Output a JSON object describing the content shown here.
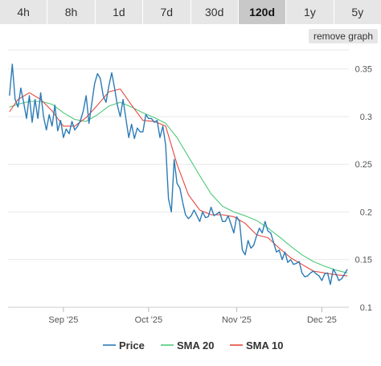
{
  "timeframes": {
    "tabs": [
      "4h",
      "8h",
      "1d",
      "7d",
      "30d",
      "120d",
      "1y",
      "5y"
    ],
    "active_index": 5
  },
  "remove_graph_label": "remove graph",
  "chart_data": {
    "type": "line",
    "title": "",
    "xlabel": "",
    "ylabel": "",
    "ylim": [
      0.1,
      0.37
    ],
    "grid": true,
    "legend_position": "bottom",
    "y_ticks": [
      {
        "value": 0.35,
        "label": "0.35"
      },
      {
        "value": 0.3,
        "label": "0.3"
      },
      {
        "value": 0.25,
        "label": "0.25"
      },
      {
        "value": 0.2,
        "label": "0.2"
      },
      {
        "value": 0.15,
        "label": "0.15"
      },
      {
        "value": 0.1,
        "label": "0.1"
      }
    ],
    "x_ticks": [
      {
        "date": "2025-09-01",
        "label": "Sep '25"
      },
      {
        "date": "2025-10-01",
        "label": "Oct '25"
      },
      {
        "date": "2025-11-01",
        "label": "Nov '25"
      },
      {
        "date": "2025-12-01",
        "label": "Dec '25"
      }
    ],
    "series": [
      {
        "name": "Price",
        "color": "#2c7bb6",
        "x": [
          "2025-08-13",
          "2025-08-14",
          "2025-08-15",
          "2025-08-16",
          "2025-08-17",
          "2025-08-18",
          "2025-08-19",
          "2025-08-20",
          "2025-08-21",
          "2025-08-22",
          "2025-08-23",
          "2025-08-24",
          "2025-08-25",
          "2025-08-26",
          "2025-08-27",
          "2025-08-28",
          "2025-08-29",
          "2025-08-30",
          "2025-08-31",
          "2025-09-01",
          "2025-09-02",
          "2025-09-03",
          "2025-09-04",
          "2025-09-05",
          "2025-09-06",
          "2025-09-07",
          "2025-09-08",
          "2025-09-09",
          "2025-09-10",
          "2025-09-11",
          "2025-09-12",
          "2025-09-13",
          "2025-09-14",
          "2025-09-15",
          "2025-09-16",
          "2025-09-17",
          "2025-09-18",
          "2025-09-19",
          "2025-09-20",
          "2025-09-21",
          "2025-09-22",
          "2025-09-23",
          "2025-09-24",
          "2025-09-25",
          "2025-09-26",
          "2025-09-27",
          "2025-09-28",
          "2025-09-29",
          "2025-09-30",
          "2025-10-01",
          "2025-10-02",
          "2025-10-03",
          "2025-10-04",
          "2025-10-05",
          "2025-10-06",
          "2025-10-07",
          "2025-10-08",
          "2025-10-09",
          "2025-10-10",
          "2025-10-11",
          "2025-10-12",
          "2025-10-13",
          "2025-10-14",
          "2025-10-15",
          "2025-10-16",
          "2025-10-17",
          "2025-10-18",
          "2025-10-19",
          "2025-10-20",
          "2025-10-21",
          "2025-10-22",
          "2025-10-23",
          "2025-10-24",
          "2025-10-25",
          "2025-10-26",
          "2025-10-27",
          "2025-10-28",
          "2025-10-29",
          "2025-10-30",
          "2025-10-31",
          "2025-11-01",
          "2025-11-02",
          "2025-11-03",
          "2025-11-04",
          "2025-11-05",
          "2025-11-06",
          "2025-11-07",
          "2025-11-08",
          "2025-11-09",
          "2025-11-10",
          "2025-11-11",
          "2025-11-12",
          "2025-11-13",
          "2025-11-14",
          "2025-11-15",
          "2025-11-16",
          "2025-11-17",
          "2025-11-18",
          "2025-11-19",
          "2025-11-20",
          "2025-11-21",
          "2025-11-22",
          "2025-11-23",
          "2025-11-24",
          "2025-11-25",
          "2025-11-26",
          "2025-11-27",
          "2025-11-28",
          "2025-11-29",
          "2025-11-30",
          "2025-12-01",
          "2025-12-02",
          "2025-12-03",
          "2025-12-04",
          "2025-12-05",
          "2025-12-06",
          "2025-12-07",
          "2025-12-08",
          "2025-12-09",
          "2025-12-10"
        ],
        "values": [
          0.322,
          0.355,
          0.318,
          0.31,
          0.33,
          0.315,
          0.298,
          0.322,
          0.294,
          0.318,
          0.298,
          0.325,
          0.3,
          0.286,
          0.302,
          0.29,
          0.312,
          0.285,
          0.296,
          0.278,
          0.287,
          0.282,
          0.295,
          0.286,
          0.29,
          0.296,
          0.306,
          0.322,
          0.293,
          0.314,
          0.335,
          0.345,
          0.34,
          0.322,
          0.315,
          0.332,
          0.346,
          0.33,
          0.312,
          0.3,
          0.318,
          0.298,
          0.278,
          0.292,
          0.277,
          0.288,
          0.284,
          0.284,
          0.302,
          0.298,
          0.298,
          0.294,
          0.296,
          0.278,
          0.29,
          0.27,
          0.214,
          0.2,
          0.255,
          0.23,
          0.225,
          0.21,
          0.197,
          0.193,
          0.196,
          0.202,
          0.196,
          0.19,
          0.2,
          0.194,
          0.195,
          0.205,
          0.196,
          0.198,
          0.2,
          0.19,
          0.19,
          0.196,
          0.187,
          0.178,
          0.195,
          0.19,
          0.16,
          0.155,
          0.17,
          0.162,
          0.165,
          0.175,
          0.183,
          0.178,
          0.19,
          0.18,
          0.178,
          0.168,
          0.158,
          0.16,
          0.15,
          0.158,
          0.147,
          0.15,
          0.145,
          0.146,
          0.148,
          0.136,
          0.132,
          0.133,
          0.136,
          0.138,
          0.135,
          0.133,
          0.128,
          0.135,
          0.136,
          0.124,
          0.14,
          0.135,
          0.128,
          0.13,
          0.135,
          0.14
        ]
      },
      {
        "name": "SMA 20",
        "color": "#4dc97a",
        "x": [
          "2025-08-13",
          "2025-08-16",
          "2025-08-20",
          "2025-08-24",
          "2025-08-28",
          "2025-09-01",
          "2025-09-05",
          "2025-09-09",
          "2025-09-13",
          "2025-09-17",
          "2025-09-21",
          "2025-09-25",
          "2025-09-29",
          "2025-10-03",
          "2025-10-07",
          "2025-10-11",
          "2025-10-15",
          "2025-10-19",
          "2025-10-23",
          "2025-10-27",
          "2025-10-31",
          "2025-11-04",
          "2025-11-08",
          "2025-11-12",
          "2025-11-16",
          "2025-11-20",
          "2025-11-24",
          "2025-11-28",
          "2025-12-02",
          "2025-12-06",
          "2025-12-10"
        ],
        "values": [
          0.31,
          0.313,
          0.316,
          0.316,
          0.313,
          0.304,
          0.297,
          0.295,
          0.302,
          0.311,
          0.315,
          0.31,
          0.304,
          0.299,
          0.293,
          0.278,
          0.258,
          0.238,
          0.219,
          0.206,
          0.2,
          0.196,
          0.191,
          0.183,
          0.174,
          0.164,
          0.155,
          0.148,
          0.143,
          0.139,
          0.136
        ]
      },
      {
        "name": "SMA 10",
        "color": "#e8473d",
        "x": [
          "2025-08-13",
          "2025-08-16",
          "2025-08-20",
          "2025-08-24",
          "2025-08-28",
          "2025-09-01",
          "2025-09-05",
          "2025-09-09",
          "2025-09-13",
          "2025-09-17",
          "2025-09-21",
          "2025-09-25",
          "2025-09-29",
          "2025-10-03",
          "2025-10-07",
          "2025-10-11",
          "2025-10-15",
          "2025-10-19",
          "2025-10-23",
          "2025-10-27",
          "2025-10-31",
          "2025-11-04",
          "2025-11-08",
          "2025-11-12",
          "2025-11-16",
          "2025-11-20",
          "2025-11-24",
          "2025-11-28",
          "2025-12-02",
          "2025-12-06",
          "2025-12-10"
        ],
        "values": [
          0.305,
          0.318,
          0.325,
          0.318,
          0.306,
          0.29,
          0.29,
          0.299,
          0.312,
          0.326,
          0.329,
          0.312,
          0.296,
          0.295,
          0.29,
          0.25,
          0.218,
          0.202,
          0.197,
          0.197,
          0.195,
          0.188,
          0.176,
          0.173,
          0.162,
          0.152,
          0.145,
          0.138,
          0.136,
          0.134,
          0.133
        ]
      }
    ]
  }
}
